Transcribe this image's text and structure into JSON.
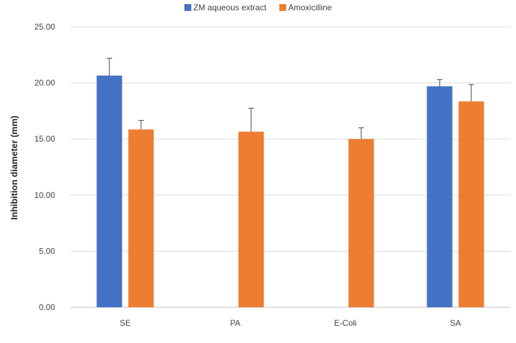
{
  "chart_data": {
    "type": "bar",
    "title": "",
    "xlabel": "",
    "ylabel": "Inhibition diameter (mm)",
    "categories": [
      "SE",
      "PA",
      "E-Coli",
      "SA"
    ],
    "series": [
      {
        "name": "ZM aqueous extract",
        "color": "#4472c4",
        "values": [
          20.65,
          null,
          null,
          19.7
        ],
        "errors": [
          1.55,
          null,
          null,
          0.6
        ]
      },
      {
        "name": "Amoxicilline",
        "color": "#ed7d31",
        "values": [
          15.85,
          15.65,
          15.0,
          18.35
        ],
        "errors": [
          0.8,
          2.1,
          1.0,
          1.5
        ]
      }
    ],
    "ylim": [
      0,
      25
    ],
    "yticks": [
      "0.00",
      "5.00",
      "10.00",
      "15.00",
      "20.00",
      "25.00"
    ],
    "ytick_values": [
      0,
      5,
      10,
      15,
      20,
      25
    ],
    "grid": true,
    "legend_position": "top-center"
  }
}
